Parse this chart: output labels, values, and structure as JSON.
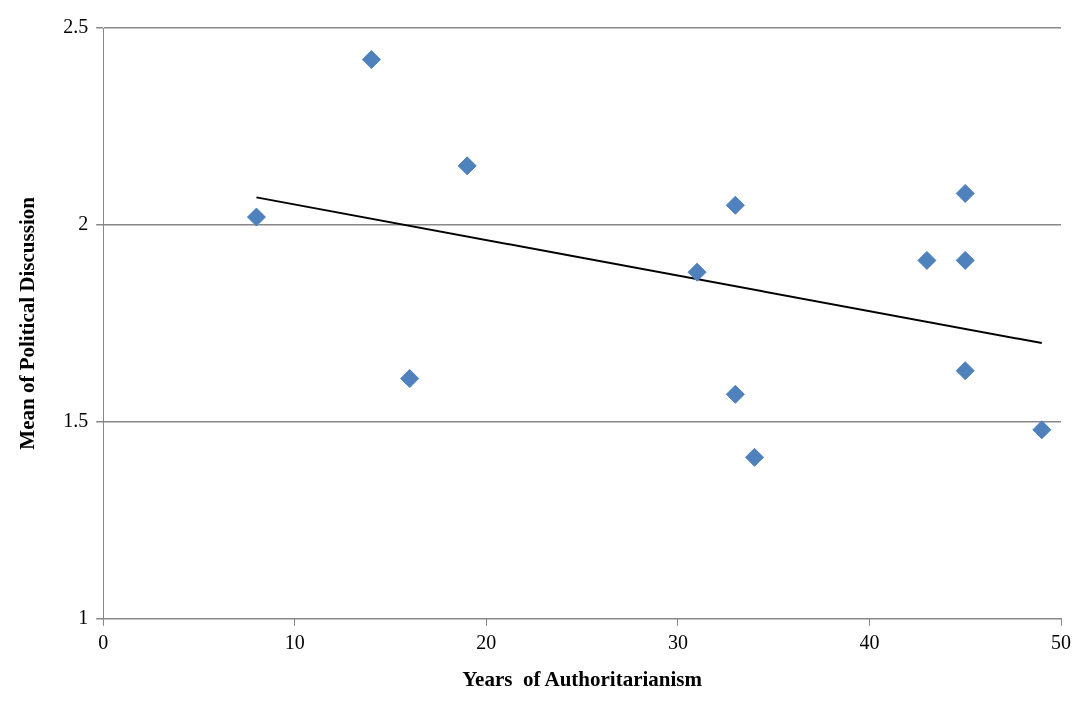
{
  "chart_data": {
    "type": "scatter",
    "xlabel": "Years  of Authoritarianism",
    "ylabel": "Mean of Political Discussion",
    "xlim": [
      0,
      50
    ],
    "xticks": [
      0,
      10,
      20,
      30,
      40,
      50
    ],
    "ylim": [
      1,
      2.5
    ],
    "yticks": [
      1,
      1.5,
      2,
      2.5
    ],
    "grid": "y",
    "marker": "diamond",
    "series": [
      {
        "type": "scatter",
        "color": "#4f81bd",
        "x": [
          8,
          14,
          16,
          19,
          31,
          33,
          33,
          34,
          43,
          45,
          45,
          45,
          49
        ],
        "values": [
          2.02,
          2.42,
          1.61,
          2.15,
          1.88,
          2.05,
          1.57,
          1.41,
          1.91,
          2.08,
          1.91,
          1.63,
          1.48
        ]
      },
      {
        "type": "line",
        "color": "#000000",
        "marker": "none",
        "x": [
          8,
          49
        ],
        "values": [
          2.07,
          1.7
        ]
      }
    ]
  }
}
